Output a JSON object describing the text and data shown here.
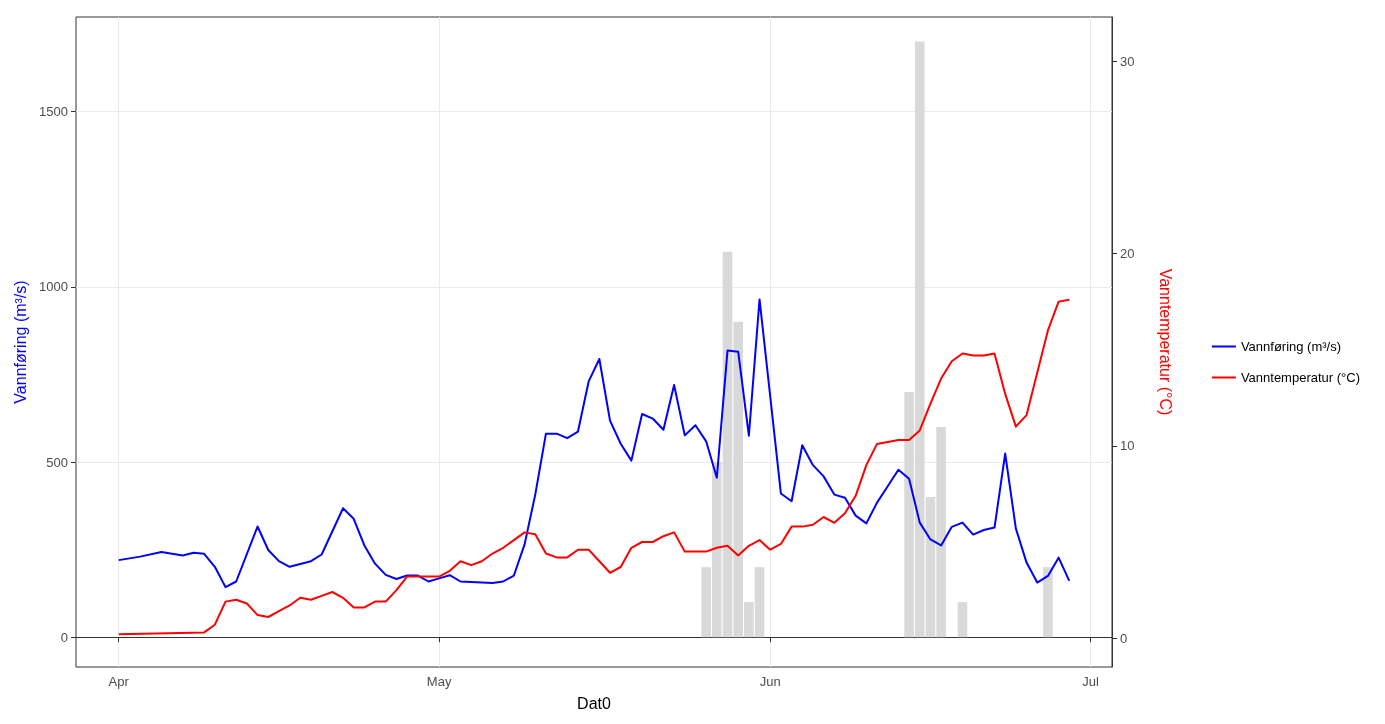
{
  "chart_data": {
    "type": "line",
    "xlabel": "Dat0",
    "ylabel": "Vannføring (m³/s)",
    "y2label": "Vanntemperatur (°C)",
    "xlim": [
      "--03-28",
      "--07-03"
    ],
    "xticks": [
      {
        "value": "--04-01",
        "label": "Apr"
      },
      {
        "value": "--05-01",
        "label": "May"
      },
      {
        "value": "--06-01",
        "label": "Jun"
      },
      {
        "value": "--07-01",
        "label": "Jul"
      }
    ],
    "ylim": [
      -85,
      1770
    ],
    "yticks": [
      0,
      500,
      1000,
      1500
    ],
    "y2lim": [
      -1.5,
      32.3
    ],
    "y2ticks": [
      0,
      10,
      20,
      30
    ],
    "grid": true,
    "legend": "right",
    "series": [
      {
        "type": "bar",
        "color": "#d9d9d9",
        "x": [
          "--05-26",
          "--05-27",
          "--05-28",
          "--05-29",
          "--05-30",
          "--05-31",
          "--06-14",
          "--06-15",
          "--06-16",
          "--06-17",
          "--06-19",
          "--06-27"
        ],
        "values": [
          200,
          500,
          1100,
          900,
          100,
          200,
          700,
          1700,
          400,
          600,
          100,
          200
        ]
      },
      {
        "name": "Vannføring (m³/s)",
        "color": "#0000ff",
        "x": [
          "--04-01",
          "--04-03",
          "--04-05",
          "--04-07",
          "--04-08",
          "--04-09",
          "--04-10",
          "--04-11",
          "--04-12",
          "--04-14",
          "--04-15",
          "--04-16",
          "--04-17",
          "--04-19",
          "--04-20",
          "--04-22",
          "--04-23",
          "--04-24",
          "--04-25",
          "--04-26",
          "--04-27",
          "--04-28",
          "--04-29",
          "--04-30",
          "--05-01",
          "--05-02",
          "--05-03",
          "--05-05",
          "--05-06",
          "--05-07",
          "--05-08",
          "--05-09",
          "--05-10",
          "--05-11",
          "--05-12",
          "--05-13",
          "--05-14",
          "--05-15",
          "--05-16",
          "--05-17",
          "--05-18",
          "--05-19",
          "--05-20",
          "--05-21",
          "--05-22",
          "--05-23",
          "--05-24",
          "--05-25",
          "--05-26",
          "--05-27",
          "--05-28",
          "--05-29",
          "--05-30",
          "--05-31",
          "--06-02",
          "--06-03",
          "--06-04",
          "--06-05",
          "--06-06",
          "--06-07",
          "--06-08",
          "--06-09",
          "--06-10",
          "--06-11",
          "--06-12",
          "--06-13",
          "--06-14",
          "--06-15",
          "--06-16",
          "--06-17",
          "--06-18",
          "--06-19",
          "--06-20",
          "--06-21",
          "--06-22",
          "--06-23",
          "--06-24",
          "--06-25",
          "--06-26",
          "--06-27",
          "--06-28",
          "--06-29"
        ],
        "values": [
          220,
          230,
          243,
          233,
          241,
          238,
          201,
          143,
          159,
          316,
          249,
          217,
          201,
          217,
          236,
          368,
          338,
          262,
          210,
          178,
          166,
          176,
          176,
          159,
          168,
          177,
          159,
          156,
          155,
          159,
          176,
          265,
          407,
          581,
          581,
          568,
          587,
          730,
          794,
          618,
          552,
          504,
          637,
          624,
          592,
          720,
          576,
          605,
          559,
          455,
          818,
          815,
          575,
          964,
          410,
          388,
          548,
          491,
          459,
          407,
          398,
          347,
          325,
          384,
          431,
          478,
          452,
          327,
          279,
          262,
          315,
          327,
          293,
          306,
          313,
          524,
          310,
          213,
          156,
          175,
          227,
          161
        ]
      },
      {
        "name": "Vanntemperatur (°C)",
        "color": "#ff0000",
        "axis": "y2",
        "x": [
          "--04-01",
          "--04-09",
          "--04-10",
          "--04-11",
          "--04-12",
          "--04-13",
          "--04-14",
          "--04-15",
          "--04-16",
          "--04-17",
          "--04-18",
          "--04-19",
          "--04-20",
          "--04-21",
          "--04-22",
          "--04-23",
          "--04-24",
          "--04-25",
          "--04-26",
          "--04-27",
          "--04-28",
          "--04-29",
          "--05-01",
          "--05-02",
          "--05-03",
          "--05-04",
          "--05-05",
          "--05-06",
          "--05-07",
          "--05-08",
          "--05-09",
          "--05-10",
          "--05-11",
          "--05-12",
          "--05-13",
          "--05-14",
          "--05-15",
          "--05-16",
          "--05-17",
          "--05-18",
          "--05-19",
          "--05-20",
          "--05-21",
          "--05-22",
          "--05-23",
          "--05-24",
          "--05-25",
          "--05-26",
          "--05-27",
          "--05-28",
          "--05-29",
          "--05-30",
          "--05-31",
          "--06-01",
          "--06-02",
          "--06-03",
          "--06-04",
          "--06-05",
          "--06-06",
          "--06-07",
          "--06-08",
          "--06-09",
          "--06-10",
          "--06-11",
          "--06-12",
          "--06-13",
          "--06-14",
          "--06-15",
          "--06-16",
          "--06-17",
          "--06-18",
          "--06-19",
          "--06-20",
          "--06-21",
          "--06-22",
          "--06-23",
          "--06-24",
          "--06-25",
          "--06-26",
          "--06-27",
          "--06-28",
          "--06-29"
        ],
        "values": [
          0.2,
          0.3,
          0.7,
          1.9,
          2.0,
          1.8,
          1.2,
          1.1,
          1.4,
          1.7,
          2.1,
          2.0,
          2.2,
          2.4,
          2.1,
          1.6,
          1.6,
          1.9,
          1.9,
          2.5,
          3.2,
          3.2,
          3.2,
          3.5,
          4.0,
          3.8,
          4.0,
          4.4,
          4.7,
          5.1,
          5.5,
          5.4,
          4.4,
          4.2,
          4.2,
          4.6,
          4.6,
          4.0,
          3.4,
          3.7,
          4.7,
          5.0,
          5.0,
          5.3,
          5.5,
          4.5,
          4.5,
          4.5,
          4.7,
          4.8,
          4.3,
          4.8,
          5.1,
          4.6,
          4.9,
          5.8,
          5.8,
          5.9,
          6.3,
          6.0,
          6.5,
          7.4,
          9.0,
          10.1,
          10.2,
          10.3,
          10.3,
          10.8,
          12.2,
          13.5,
          14.4,
          14.8,
          14.7,
          14.7,
          14.8,
          12.7,
          11.0,
          11.6,
          13.8,
          16.0,
          17.5,
          17.6
        ]
      }
    ]
  }
}
